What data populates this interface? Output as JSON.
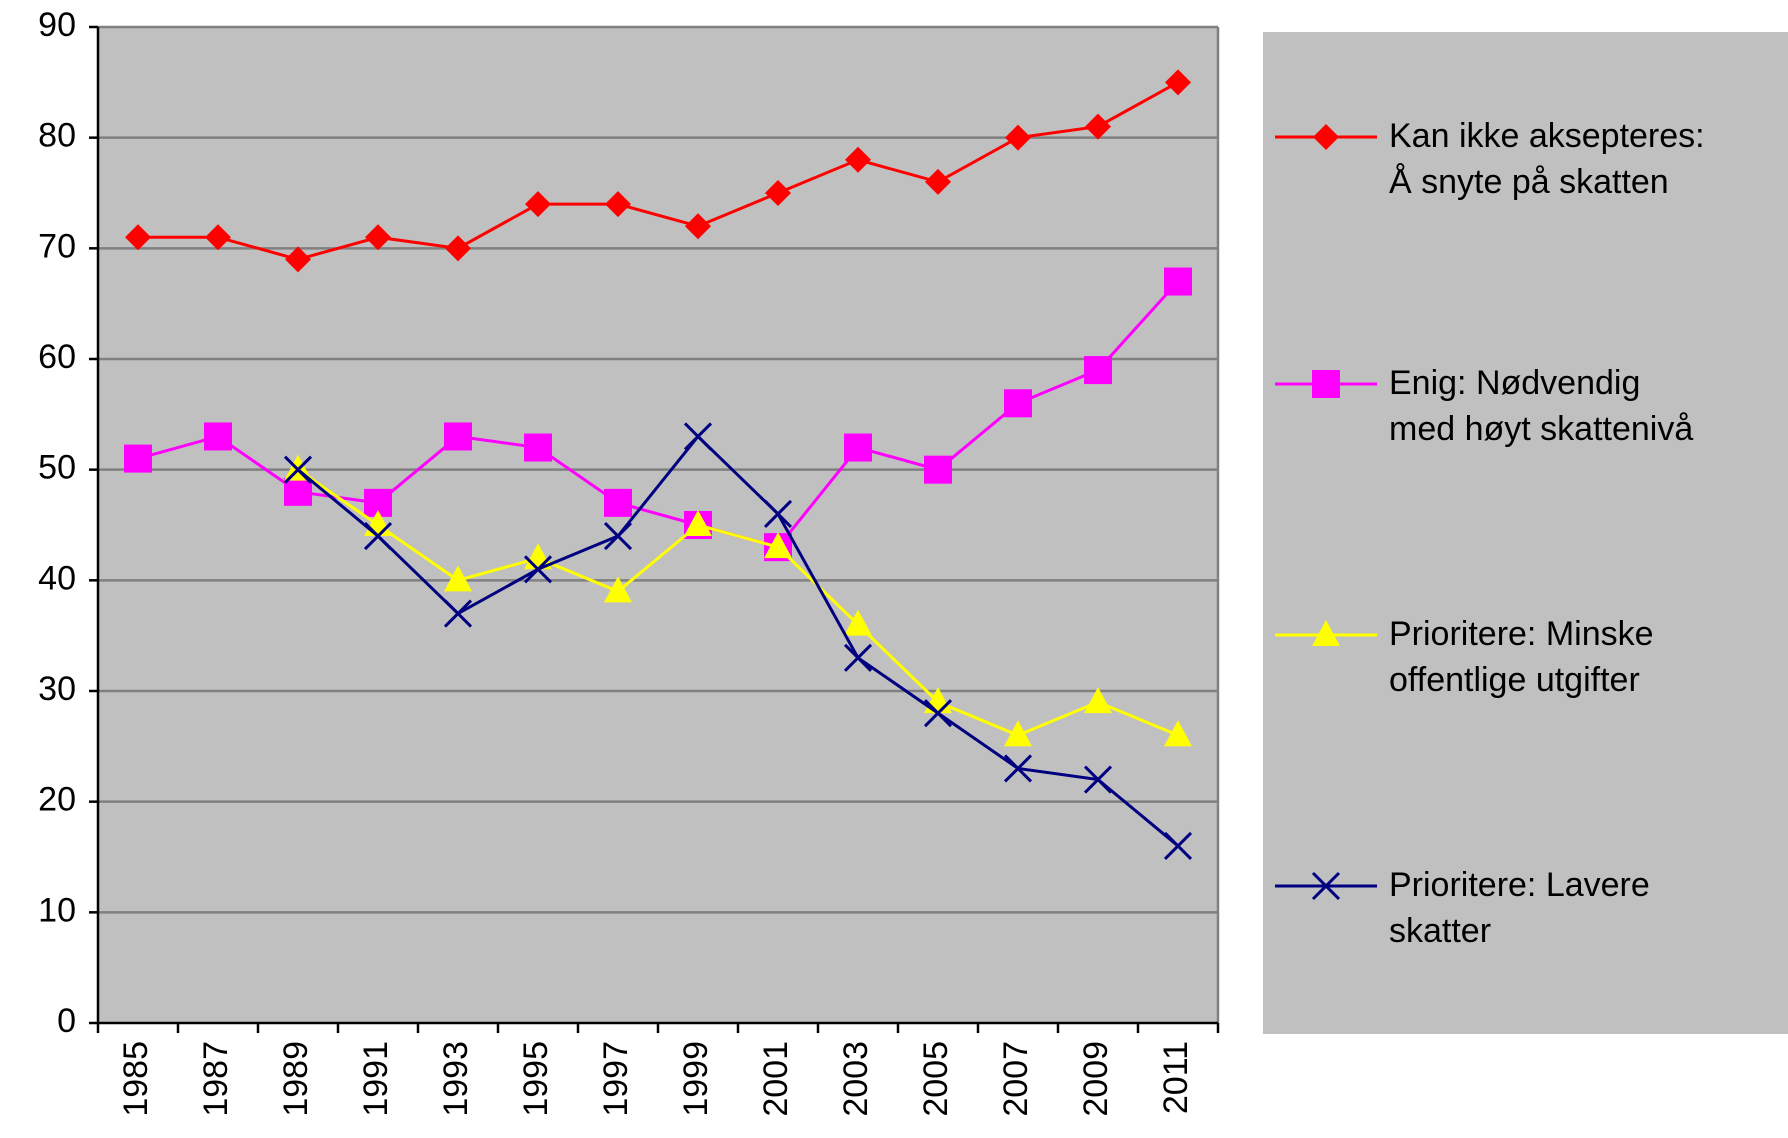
{
  "chart_data": {
    "type": "line",
    "categories": [
      "1985",
      "1987",
      "1989",
      "1991",
      "1993",
      "1995",
      "1997",
      "1999",
      "2001",
      "2003",
      "2005",
      "2007",
      "2009",
      "2011"
    ],
    "series": [
      {
        "name": "Kan ikke aksepteres:\nÅ snyte på skatten",
        "color": "#ff0000",
        "marker": "diamond",
        "values": [
          71,
          71,
          69,
          71,
          70,
          74,
          74,
          72,
          75,
          78,
          76,
          80,
          81,
          85
        ]
      },
      {
        "name": "Enig: Nødvendig\nmed høyt skattenivå",
        "color": "#ff00ff",
        "marker": "square",
        "values": [
          51,
          53,
          48,
          47,
          53,
          52,
          47,
          45,
          43,
          52,
          50,
          56,
          59,
          67
        ]
      },
      {
        "name": "Prioritere: Minske\noffentlige utgifter",
        "color": "#ffff00",
        "marker": "triangle",
        "values": [
          null,
          null,
          50,
          45,
          40,
          42,
          39,
          45,
          43,
          36,
          29,
          26,
          29,
          26
        ]
      },
      {
        "name": "Prioritere: Lavere\nskatter",
        "color": "#000080",
        "marker": "x",
        "values": [
          null,
          null,
          50,
          44,
          37,
          41,
          44,
          53,
          46,
          33,
          28,
          23,
          22,
          16
        ]
      }
    ],
    "ylim": [
      0,
      90
    ],
    "yticks": [
      0,
      10,
      20,
      30,
      40,
      50,
      60,
      70,
      80,
      90
    ],
    "grid": true,
    "legend": "right"
  }
}
